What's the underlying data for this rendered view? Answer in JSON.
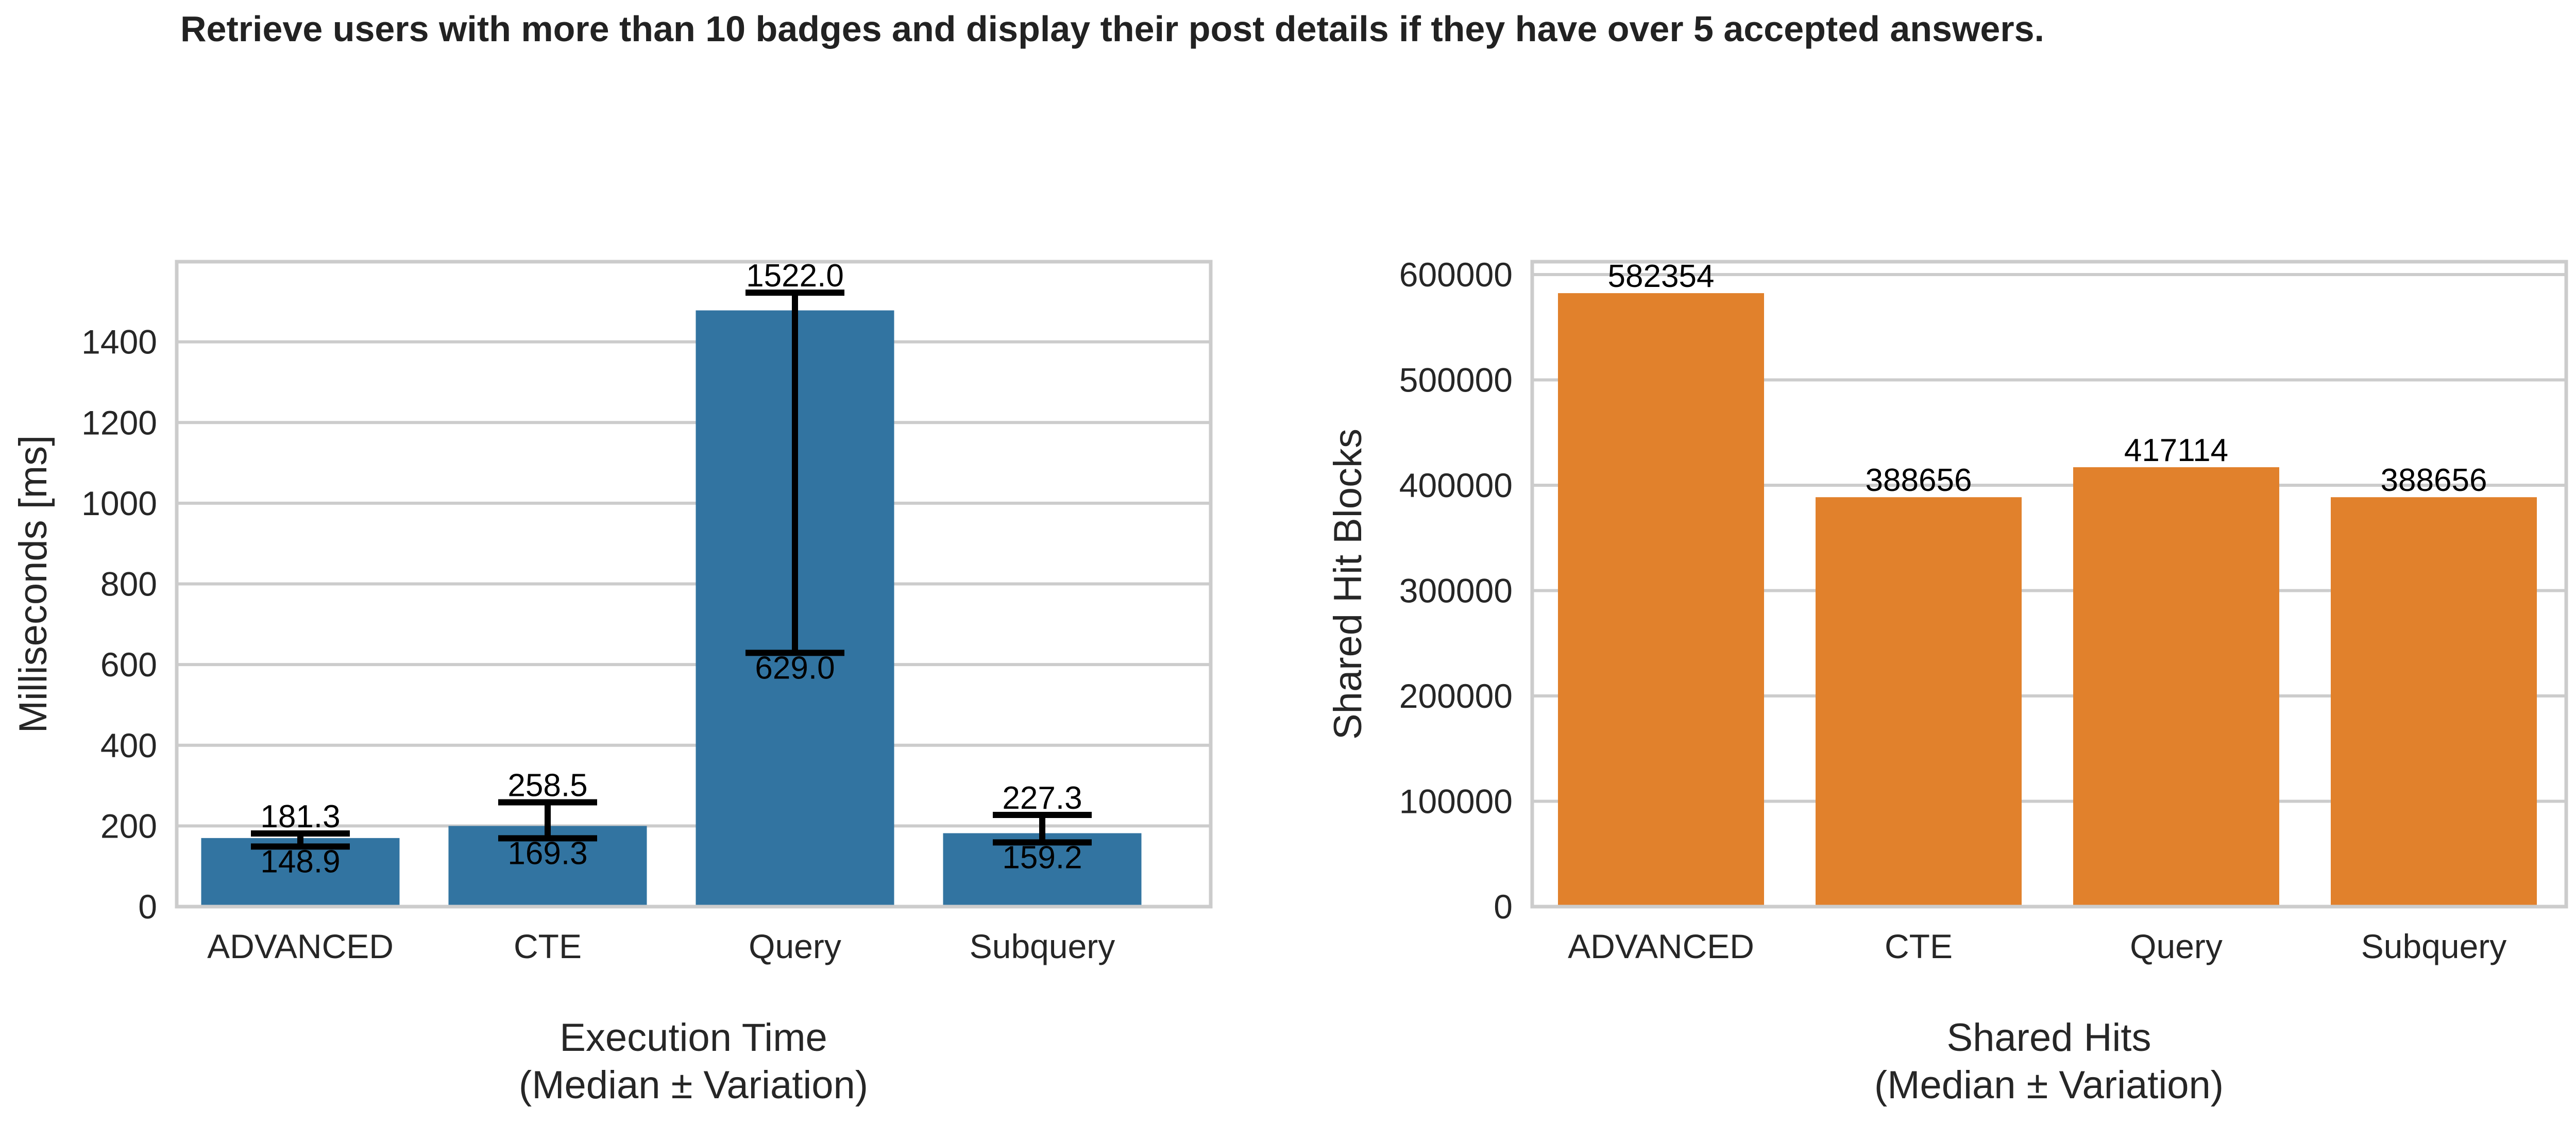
{
  "title": "Retrieve users with more than 10 badges and display their post details if they have over 5 accepted answers.",
  "colors": {
    "execution_bars": "#3274a1",
    "shared_hits_bars": "#e1812c",
    "error_bars": "#000000",
    "grid": "#cccccc"
  },
  "chart_data": [
    {
      "type": "bar",
      "categories": [
        "ADVANCED",
        "CTE",
        "Query",
        "Subquery"
      ],
      "values": [
        170,
        200,
        1478,
        182
      ],
      "error_low": [
        148.9,
        169.3,
        629.0,
        159.2
      ],
      "error_high": [
        181.3,
        258.5,
        1522.0,
        227.3
      ],
      "error_low_labels": [
        "148.9",
        "169.3",
        "629.0",
        "159.2"
      ],
      "error_high_labels": [
        "181.3",
        "258.5",
        "1522.0",
        "227.3"
      ],
      "ylabel": "Milliseconds [ms]",
      "xlabel_line1": "Execution Time",
      "xlabel_line2": "(Median ± Variation)",
      "ylim": [
        0,
        1600
      ],
      "yticks": [
        0,
        200,
        400,
        600,
        800,
        1000,
        1200,
        1400
      ],
      "grid": true
    },
    {
      "type": "bar",
      "categories": [
        "ADVANCED",
        "CTE",
        "Query",
        "Subquery"
      ],
      "values": [
        582354,
        388656,
        417114,
        388656
      ],
      "value_labels": [
        "582354",
        "388656",
        "417114",
        "388656"
      ],
      "ylabel": "Shared Hit Blocks",
      "xlabel_line1": "Shared Hits",
      "xlabel_line2": "(Median ± Variation)",
      "ylim": [
        0,
        600000
      ],
      "yticks": [
        0,
        100000,
        200000,
        300000,
        400000,
        500000,
        600000
      ],
      "grid": true
    }
  ]
}
